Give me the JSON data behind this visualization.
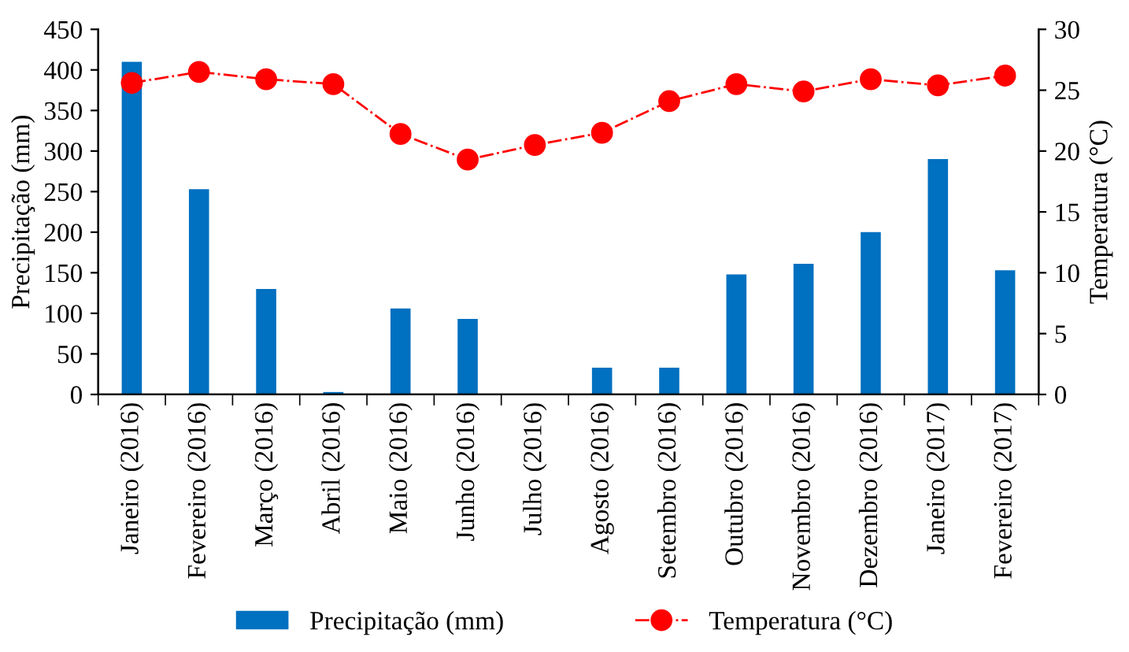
{
  "chart_data": {
    "type": "bar",
    "categories": [
      "Janeiro (2016)",
      "Fevereiro (2016)",
      "Março (2016)",
      "Abril (2016)",
      "Maio (2016)",
      "Junho (2016)",
      "Julho (2016)",
      "Agosto (2016)",
      "Setembro (2016)",
      "Outubro (2016)",
      "Novembro (2016)",
      "Dezembro (2016)",
      "Janeiro (2017)",
      "Fevereiro (2017)"
    ],
    "series": [
      {
        "name": "Precipitação (mm)",
        "color": "#0070c0",
        "values": [
          410,
          253,
          130,
          3,
          106,
          93,
          0,
          33,
          33,
          148,
          161,
          200,
          290,
          153
        ]
      },
      {
        "name": "Temperatura (°C)",
        "type": "line",
        "axis": "y2",
        "color": "#ff0000",
        "marker": "circle",
        "line_style": "dashed",
        "values": [
          25.6,
          26.5,
          25.9,
          25.5,
          21.4,
          19.3,
          20.5,
          21.5,
          24.1,
          25.5,
          24.9,
          25.9,
          25.4,
          26.2
        ]
      }
    ],
    "ylabel": "Precipitação (mm)",
    "y2label": "Temperatura (°C)",
    "ylim": [
      0,
      450
    ],
    "yticks": [
      0,
      50,
      100,
      150,
      200,
      250,
      300,
      350,
      400,
      450
    ],
    "y2lim": [
      0,
      30
    ],
    "y2ticks": [
      0,
      5,
      10,
      15,
      20,
      25,
      30
    ],
    "grid": false,
    "legend": "bottom"
  }
}
